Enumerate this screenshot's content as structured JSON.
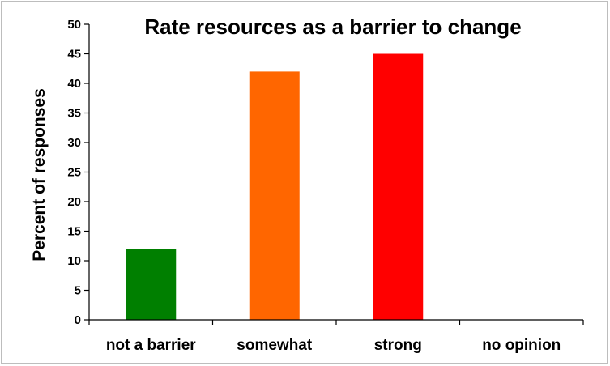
{
  "chart_data": {
    "type": "bar",
    "title": "Rate resources as a barrier to change",
    "xlabel": "",
    "ylabel": "Percent of responses",
    "categories": [
      "not a barrier",
      "somewhat",
      "strong",
      "no opinion"
    ],
    "values": [
      12,
      42,
      45,
      0
    ],
    "colors": [
      "#007f00",
      "#ff6600",
      "#ff0000",
      "#cccccc"
    ],
    "ylim": [
      0,
      50
    ],
    "yticks": [
      0,
      5,
      10,
      15,
      20,
      25,
      30,
      35,
      40,
      45,
      50
    ],
    "grid": false,
    "legend": "none"
  }
}
